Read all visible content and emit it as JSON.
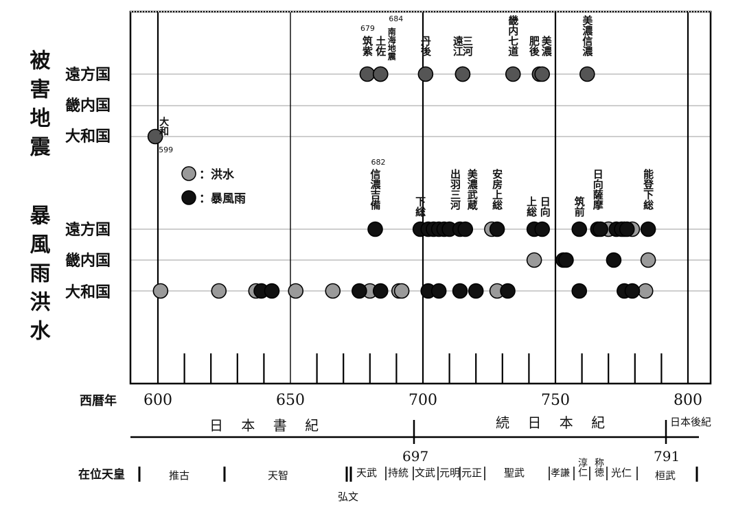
{
  "group_labels": {
    "earthquake": "被害地震",
    "storm_flood": "暴風雨洪水"
  },
  "rows": {
    "eq_far": "遠方国",
    "eq_kinai": "畿内国",
    "eq_yamato": "大和国",
    "st_far": "遠方国",
    "st_kinai": "畿内国",
    "st_yamato": "大和国"
  },
  "legend": {
    "flood": "：洪水",
    "storm": "：暴風雨"
  },
  "axis": {
    "label": "西暦年",
    "ticks": [
      "600",
      "650",
      "700",
      "750",
      "800"
    ]
  },
  "chronicles": {
    "nihon_shoki": "日 本 書 紀",
    "shoku_nihongi": "続 日 本 紀",
    "nihon_koki": "日本後紀",
    "mark1": "697",
    "mark2": "791"
  },
  "emperors": {
    "label": "在位天皇",
    "names": [
      "推古",
      "天智",
      "天武",
      "持統",
      "文武",
      "元明",
      "元正",
      "聖武",
      "孝謙",
      "淳仁",
      "称徳",
      "光仁",
      "桓武",
      "弘文"
    ]
  },
  "colors": {
    "earthquake": "#555555",
    "flood": "#9a9a9a",
    "storm": "#111111",
    "grid": "#b0b0b0",
    "frame": "#000000"
  },
  "chart_data": {
    "type": "scatter",
    "xlim": [
      590,
      800
    ],
    "categories": [
      "被害地震・遠方国",
      "被害地震・畿内国",
      "被害地震・大和国",
      "暴風雨洪水・遠方国",
      "暴風雨洪水・畿内国",
      "暴風雨洪水・大和国"
    ],
    "series": [
      {
        "name": "被害地震",
        "points": [
          {
            "x": 599,
            "row": "eq_yamato",
            "label": "大和",
            "year_label": "599"
          },
          {
            "x": 679,
            "row": "eq_far",
            "label": "筑紫",
            "year_label": "679"
          },
          {
            "x": 684,
            "row": "eq_far",
            "label": "土佐",
            "year_label": "684"
          },
          {
            "x": 684,
            "row": "eq_far",
            "label": "南海地震"
          },
          {
            "x": 701,
            "row": "eq_far",
            "label": "丹後"
          },
          {
            "x": 715,
            "row": "eq_far",
            "label": "遠江"
          },
          {
            "x": 715,
            "row": "eq_far",
            "label": "三河"
          },
          {
            "x": 734,
            "row": "eq_far",
            "label": "畿内七道"
          },
          {
            "x": 744,
            "row": "eq_far",
            "label": "肥後"
          },
          {
            "x": 745,
            "row": "eq_far",
            "label": "美濃"
          },
          {
            "x": 762,
            "row": "eq_far",
            "label": "美濃信濃"
          }
        ]
      },
      {
        "name": "洪水",
        "points": [
          {
            "x": 601,
            "row": "st_yamato"
          },
          {
            "x": 623,
            "row": "st_yamato"
          },
          {
            "x": 637,
            "row": "st_yamato"
          },
          {
            "x": 652,
            "row": "st_yamato"
          },
          {
            "x": 666,
            "row": "st_yamato"
          },
          {
            "x": 680,
            "row": "st_yamato"
          },
          {
            "x": 691,
            "row": "st_yamato"
          },
          {
            "x": 692,
            "row": "st_yamato"
          },
          {
            "x": 728,
            "row": "st_yamato"
          },
          {
            "x": 784,
            "row": "st_yamato"
          },
          {
            "x": 726,
            "row": "st_far"
          },
          {
            "x": 770,
            "row": "st_far"
          },
          {
            "x": 776,
            "row": "st_far"
          },
          {
            "x": 779,
            "row": "st_far"
          },
          {
            "x": 742,
            "row": "st_kinai"
          },
          {
            "x": 785,
            "row": "st_kinai"
          }
        ]
      },
      {
        "name": "暴風雨",
        "points": [
          {
            "x": 639,
            "row": "st_yamato"
          },
          {
            "x": 643,
            "row": "st_yamato"
          },
          {
            "x": 676,
            "row": "st_yamato"
          },
          {
            "x": 684,
            "row": "st_yamato"
          },
          {
            "x": 702,
            "row": "st_yamato"
          },
          {
            "x": 706,
            "row": "st_yamato"
          },
          {
            "x": 714,
            "row": "st_yamato"
          },
          {
            "x": 720,
            "row": "st_yamato"
          },
          {
            "x": 732,
            "row": "st_yamato"
          },
          {
            "x": 759,
            "row": "st_yamato"
          },
          {
            "x": 776,
            "row": "st_yamato"
          },
          {
            "x": 779,
            "row": "st_yamato"
          },
          {
            "x": 682,
            "row": "st_far",
            "label": "信濃吉備",
            "year_label": "682"
          },
          {
            "x": 699,
            "row": "st_far",
            "label": "下総"
          },
          {
            "x": 702,
            "row": "st_far"
          },
          {
            "x": 704,
            "row": "st_far"
          },
          {
            "x": 706,
            "row": "st_far"
          },
          {
            "x": 708,
            "row": "st_far"
          },
          {
            "x": 710,
            "row": "st_far"
          },
          {
            "x": 714,
            "row": "st_far",
            "label": "出羽三河"
          },
          {
            "x": 716,
            "row": "st_far",
            "label": "美濃武蔵"
          },
          {
            "x": 728,
            "row": "st_far",
            "label": "安房上総"
          },
          {
            "x": 742,
            "row": "st_far",
            "label": "上総"
          },
          {
            "x": 745,
            "row": "st_far",
            "label": "日向"
          },
          {
            "x": 759,
            "row": "st_far",
            "label": "筑前"
          },
          {
            "x": 766,
            "row": "st_far",
            "label": "日向薩摩"
          },
          {
            "x": 767,
            "row": "st_far"
          },
          {
            "x": 773,
            "row": "st_far"
          },
          {
            "x": 775,
            "row": "st_far"
          },
          {
            "x": 777,
            "row": "st_far"
          },
          {
            "x": 785,
            "row": "st_far",
            "label": "能登下総"
          },
          {
            "x": 753,
            "row": "st_kinai"
          },
          {
            "x": 754,
            "row": "st_kinai"
          },
          {
            "x": 772,
            "row": "st_kinai"
          }
        ]
      }
    ]
  }
}
